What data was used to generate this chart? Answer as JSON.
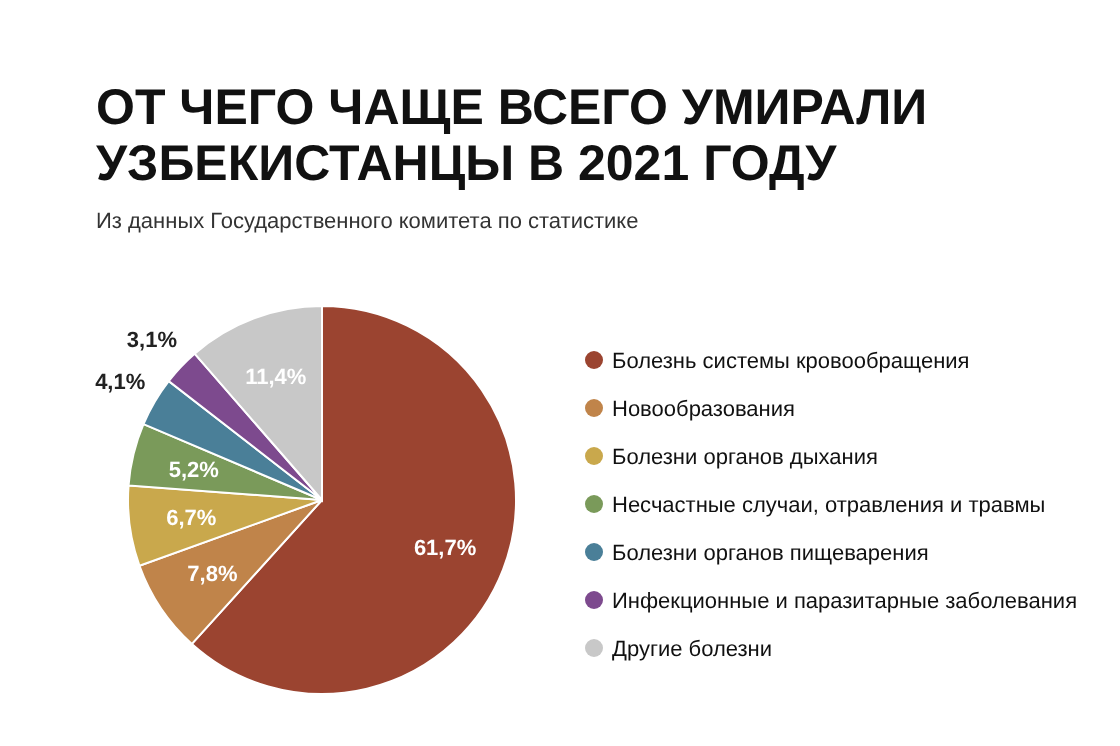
{
  "chart_data": {
    "type": "pie",
    "title": "ОТ ЧЕГО ЧАЩЕ ВСЕГО УМИРАЛИ УЗБЕКИСТАНЦЫ В 2021 ГОДУ",
    "subtitle": "Из данных Государственного комитета по статистике",
    "categories": [
      "Болезнь системы кровообращения",
      "Новообразования",
      "Болезни органов дыхания",
      "Несчастные случаи, отравления и травмы",
      "Болезни органов пищеварения",
      "Инфекционные и паразитарные заболевания",
      "Другие болезни"
    ],
    "values": [
      61.7,
      7.8,
      6.7,
      5.2,
      4.1,
      3.1,
      11.4
    ],
    "value_labels": [
      "61,7%",
      "7,8%",
      "6,7%",
      "5,2%",
      "4,1%",
      "3,1%",
      "11,4%"
    ],
    "colors": [
      "#9b4430",
      "#c0844a",
      "#c9a84c",
      "#7a9a5a",
      "#4a7f98",
      "#7d4a8e",
      "#c8c8c8"
    ],
    "legend": "right"
  }
}
